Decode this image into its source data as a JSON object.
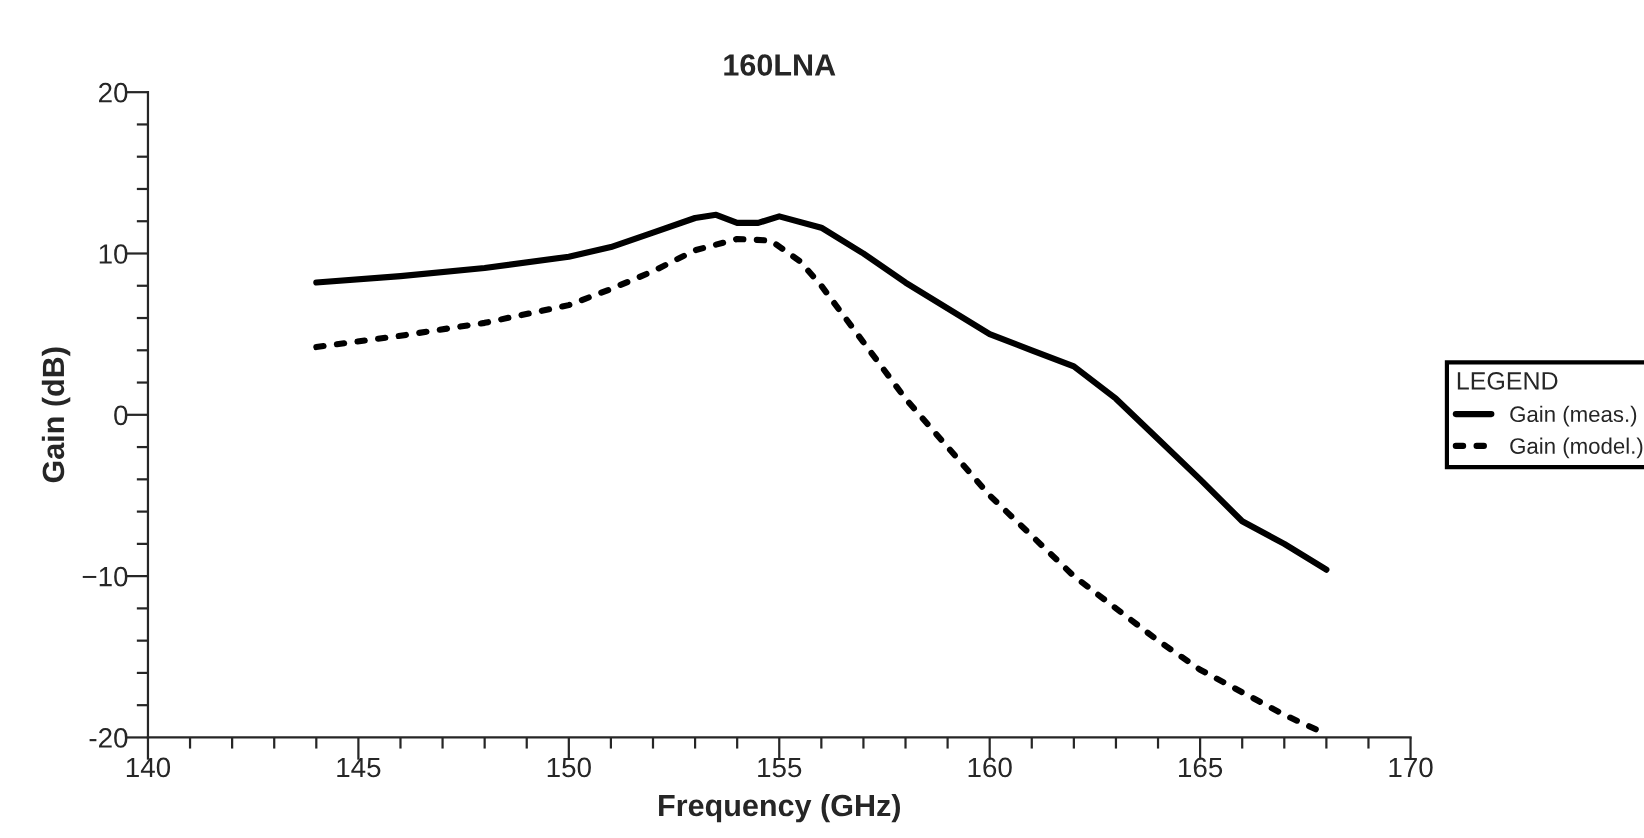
{
  "chart_data": {
    "type": "line",
    "title": "160LNA",
    "xlabel": "Frequency (GHz)",
    "ylabel": "Gain (dB)",
    "legend_title": "LEGEND",
    "legend": "right",
    "grid": false,
    "xlim": [
      140,
      170
    ],
    "ylim": [
      -20,
      20
    ],
    "xticks": [
      140,
      {
        "value": 141,
        "label": null
      },
      {
        "value": 142,
        "label": null
      },
      {
        "value": 143,
        "label": null
      },
      {
        "value": 144,
        "label": null
      },
      145,
      {
        "value": 146,
        "label": null
      },
      {
        "value": 147,
        "label": null
      },
      {
        "value": 148,
        "label": null
      },
      {
        "value": 149,
        "label": null
      },
      150,
      {
        "value": 151,
        "label": null
      },
      {
        "value": 152,
        "label": null
      },
      {
        "value": 153,
        "label": null
      },
      {
        "value": 154,
        "label": null
      },
      155,
      {
        "value": 156,
        "label": null
      },
      {
        "value": 157,
        "label": null
      },
      {
        "value": 158,
        "label": null
      },
      {
        "value": 159,
        "label": null
      },
      160,
      {
        "value": 161,
        "label": null
      },
      {
        "value": 162,
        "label": null
      },
      {
        "value": 163,
        "label": null
      },
      {
        "value": 164,
        "label": null
      },
      165,
      {
        "value": 166,
        "label": null
      },
      {
        "value": 167,
        "label": null
      },
      {
        "value": 168,
        "label": null
      },
      {
        "value": 169,
        "label": null
      },
      170
    ],
    "yticks": [
      -20,
      {
        "value": -18,
        "label": null
      },
      {
        "value": -16,
        "label": null
      },
      {
        "value": -14,
        "label": null
      },
      {
        "value": -12,
        "label": null
      },
      {
        "value": -10,
        "label": "−10"
      },
      {
        "value": -8,
        "label": null
      },
      {
        "value": -6,
        "label": null
      },
      {
        "value": -4,
        "label": null
      },
      {
        "value": -2,
        "label": null
      },
      0,
      {
        "value": 2,
        "label": null
      },
      {
        "value": 4,
        "label": null
      },
      {
        "value": 6,
        "label": null
      },
      {
        "value": 8,
        "label": null
      },
      10,
      {
        "value": 12,
        "label": null
      },
      {
        "value": 14,
        "label": null
      },
      {
        "value": 16,
        "label": null
      },
      {
        "value": 18,
        "label": null
      },
      20
    ],
    "series": [
      {
        "name": "Gain (meas.)",
        "color": "#000000",
        "line_style": "solid",
        "x": [
          144,
          146,
          148,
          150,
          151,
          152,
          153,
          153.5,
          154,
          154.5,
          155,
          156,
          157,
          158,
          159,
          160,
          161,
          162,
          163,
          164,
          165,
          166,
          167,
          168
        ],
        "values": [
          8.2,
          8.6,
          9.1,
          9.8,
          10.4,
          11.3,
          12.2,
          12.4,
          11.9,
          11.9,
          12.3,
          11.6,
          10,
          8.2,
          6.6,
          5.0,
          4.0,
          3.0,
          1.0,
          -1.5,
          -4,
          -6.6,
          -8,
          -9.6
        ]
      },
      {
        "name": "Gain (model.)",
        "color": "#000000",
        "line_style": "dotted",
        "x": [
          144,
          146,
          148,
          150,
          151,
          152,
          153,
          154,
          154.8,
          155.5,
          156,
          157,
          158,
          159,
          160,
          161,
          162,
          163,
          164,
          165,
          166,
          167,
          168
        ],
        "values": [
          4.2,
          4.9,
          5.7,
          6.8,
          7.8,
          8.9,
          10.2,
          10.9,
          10.8,
          9.5,
          8,
          4.5,
          1,
          -2,
          -5,
          -7.5,
          -10,
          -12,
          -14,
          -15.8,
          -17.2,
          -18.6,
          -19.8
        ]
      }
    ]
  }
}
